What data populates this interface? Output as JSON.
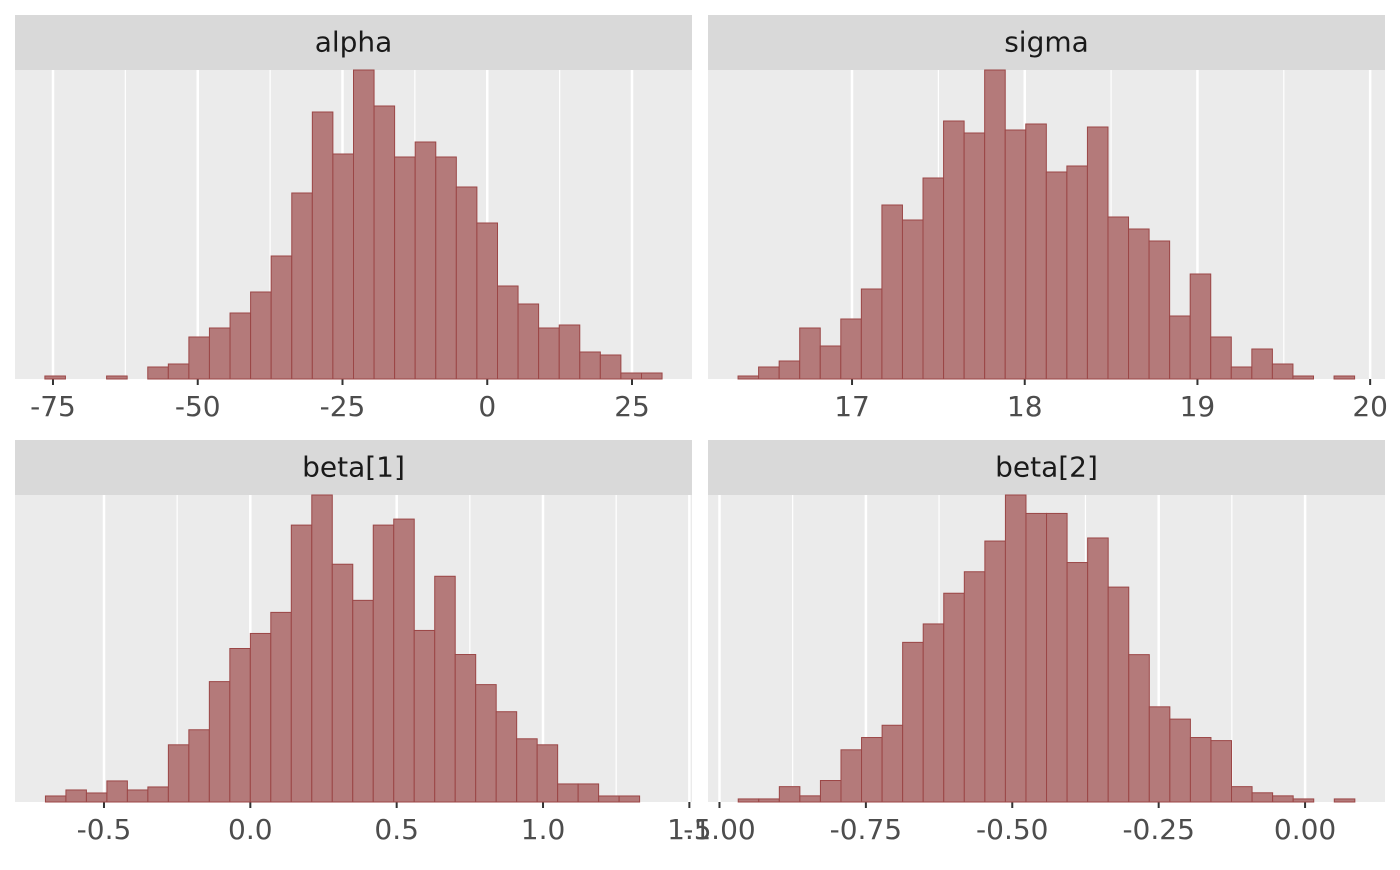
{
  "chart_data": [
    {
      "type": "histogram",
      "title": "alpha",
      "color": "#b47a7a",
      "grid": true,
      "bins": [
        -76.4,
        -72.85,
        -69.29,
        -65.74,
        -62.19,
        -58.63,
        -55.08,
        -51.53,
        -47.98,
        -44.42,
        -40.87,
        -37.32,
        -33.76,
        -30.21,
        -26.66,
        -23.1,
        -19.55,
        -16.0,
        -12.45,
        -8.89,
        -5.34,
        -1.79,
        1.77,
        5.32,
        8.87,
        12.43,
        15.98,
        19.53,
        23.08,
        26.64,
        30.19
      ],
      "values": [
        1,
        0,
        0,
        1,
        0,
        4,
        5,
        14,
        17,
        22,
        29,
        41,
        62,
        89,
        75,
        103,
        91,
        74,
        79,
        74,
        64,
        52,
        31,
        25,
        17,
        18,
        9,
        8,
        2,
        2
      ],
      "xlim": [
        -81.56,
        35.36
      ],
      "xticks": [
        -75,
        -50,
        -25,
        0,
        25
      ],
      "ylim": [
        0,
        103
      ]
    },
    {
      "type": "histogram",
      "title": "sigma",
      "color": "#b47a7a",
      "grid": true,
      "bins": [
        16.34,
        16.459,
        16.578,
        16.697,
        16.816,
        16.935,
        17.054,
        17.173,
        17.292,
        17.411,
        17.53,
        17.649,
        17.768,
        17.887,
        18.006,
        18.125,
        18.244,
        18.363,
        18.482,
        18.601,
        18.72,
        18.839,
        18.958,
        19.077,
        19.196,
        19.315,
        19.434,
        19.553,
        19.672,
        19.791,
        19.91
      ],
      "values": [
        1,
        4,
        6,
        17,
        11,
        20,
        30,
        58,
        53,
        67,
        86,
        82,
        103,
        83,
        85,
        69,
        71,
        84,
        54,
        50,
        46,
        21,
        35,
        14,
        4,
        10,
        5,
        1,
        0,
        1
      ],
      "xlim": [
        16.166,
        20.086
      ],
      "xticks": [
        17,
        18,
        19,
        20
      ],
      "ylim": [
        0,
        103
      ]
    },
    {
      "type": "histogram",
      "title": "beta[1]",
      "color": "#b47a7a",
      "grid": true,
      "bins": [
        -0.7,
        -0.63,
        -0.56,
        -0.49,
        -0.42,
        -0.35,
        -0.28,
        -0.21,
        -0.14,
        -0.07,
        0,
        0.07,
        0.14,
        0.21,
        0.28,
        0.35,
        0.42,
        0.49,
        0.56,
        0.63,
        0.7,
        0.77,
        0.84,
        0.91,
        0.98,
        1.05,
        1.12,
        1.19,
        1.26,
        1.33,
        1.4
      ],
      "values": [
        2,
        4,
        3,
        7,
        4,
        5,
        19,
        24,
        40,
        51,
        56,
        63,
        92,
        102,
        79,
        67,
        92,
        94,
        57,
        75,
        49,
        39,
        30,
        21,
        19,
        6,
        6,
        2,
        2,
        0
      ],
      "xlim": [
        -0.804,
        1.509
      ],
      "xticks": [
        -0.5,
        {
          "value": 0,
          "label": "0.0"
        },
        0.5,
        {
          "value": 1,
          "label": "1.0"
        },
        1.5
      ],
      "ylim": [
        0,
        102
      ]
    },
    {
      "type": "histogram",
      "title": "beta[2]",
      "color": "#b47a7a",
      "grid": true,
      "bins": [
        -0.968,
        -0.9329,
        -0.8978,
        -0.8627,
        -0.8276,
        -0.7925,
        -0.7574,
        -0.7223,
        -0.6872,
        -0.6521,
        -0.617,
        -0.5819,
        -0.5468,
        -0.5117,
        -0.4766,
        -0.4415,
        -0.4064,
        -0.3713,
        -0.3362,
        -0.3011,
        -0.266,
        -0.2309,
        -0.1958,
        -0.1607,
        -0.1256,
        -0.0905,
        -0.0554,
        -0.0203,
        0.0148,
        0.0499,
        0.085
      ],
      "values": [
        1,
        1,
        5,
        2,
        7,
        17,
        21,
        25,
        52,
        58,
        68,
        75,
        85,
        100,
        94,
        94,
        78,
        86,
        70,
        48,
        31,
        27,
        21,
        20,
        5,
        3,
        2,
        1,
        0,
        1
      ],
      "xlim": [
        -1.0196,
        0.1365
      ],
      "xticks": [
        {
          "value": -1,
          "label": "-1.00"
        },
        -0.75,
        {
          "value": -0.5,
          "label": "-0.50"
        },
        -0.25,
        {
          "value": 0,
          "label": "0.00"
        }
      ],
      "ylim": [
        0,
        100
      ]
    }
  ]
}
